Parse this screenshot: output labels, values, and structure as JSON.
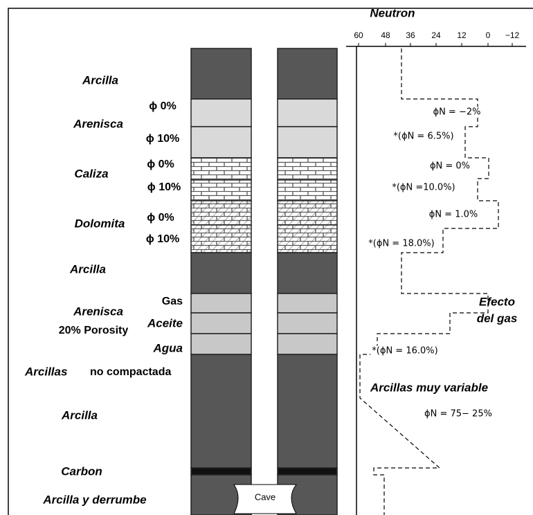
{
  "title": "Neutron",
  "scale": {
    "ticks": [
      "60",
      "48",
      "36",
      "24",
      "12",
      "0",
      "−12"
    ]
  },
  "formations": [
    "Arcilla",
    "Arenisca",
    "Caliza",
    "Dolomita",
    "Arcilla",
    "Arenisca",
    "20% Porosity",
    "Arcillas",
    "no compactada",
    "Arcilla",
    "Carbon",
    "Arcilla y derrumbe"
  ],
  "porosity": [
    "ϕ  0%",
    "ϕ 10%",
    "ϕ  0%",
    "ϕ 10%",
    "ϕ  0%",
    "ϕ 10%"
  ],
  "fluids": [
    "Gas",
    "Aceite",
    "Agua"
  ],
  "annotations": [
    "ϕN = −2%",
    "*(ϕN = 6.5%)",
    "ϕN =  0%",
    "*(ϕN =10.0%)",
    "ϕN =  1.0%",
    "*(ϕN = 18.0%)",
    "Efecto",
    "del gas",
    "*(ϕN = 16.0%)",
    "Arcillas muy variable",
    "ϕN = 75− 25%"
  ],
  "cave": "Cave"
}
